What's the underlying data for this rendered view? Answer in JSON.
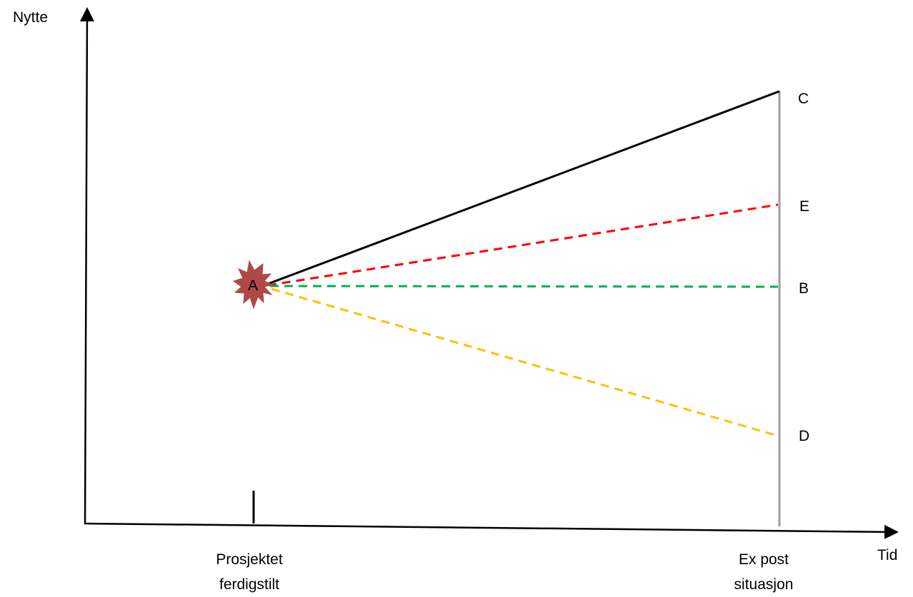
{
  "y_axis_label": "Nytte",
  "x_axis_label": "Tid",
  "x_tick_labels": {
    "project_completed": [
      "Prosjektet",
      "ferdigstilt"
    ],
    "ex_post": [
      "Ex post",
      "situasjon"
    ]
  },
  "points": {
    "a": "A",
    "b": "B",
    "c": "C",
    "d": "D",
    "e": "E"
  },
  "colors": {
    "axis": "#000000",
    "ex_post_line": "#9e9e9e",
    "line_ac": "#000000",
    "line_ae": "#ff0000",
    "line_ab": "#00b050",
    "line_ad": "#ffc000",
    "burst": "#b04848"
  }
}
